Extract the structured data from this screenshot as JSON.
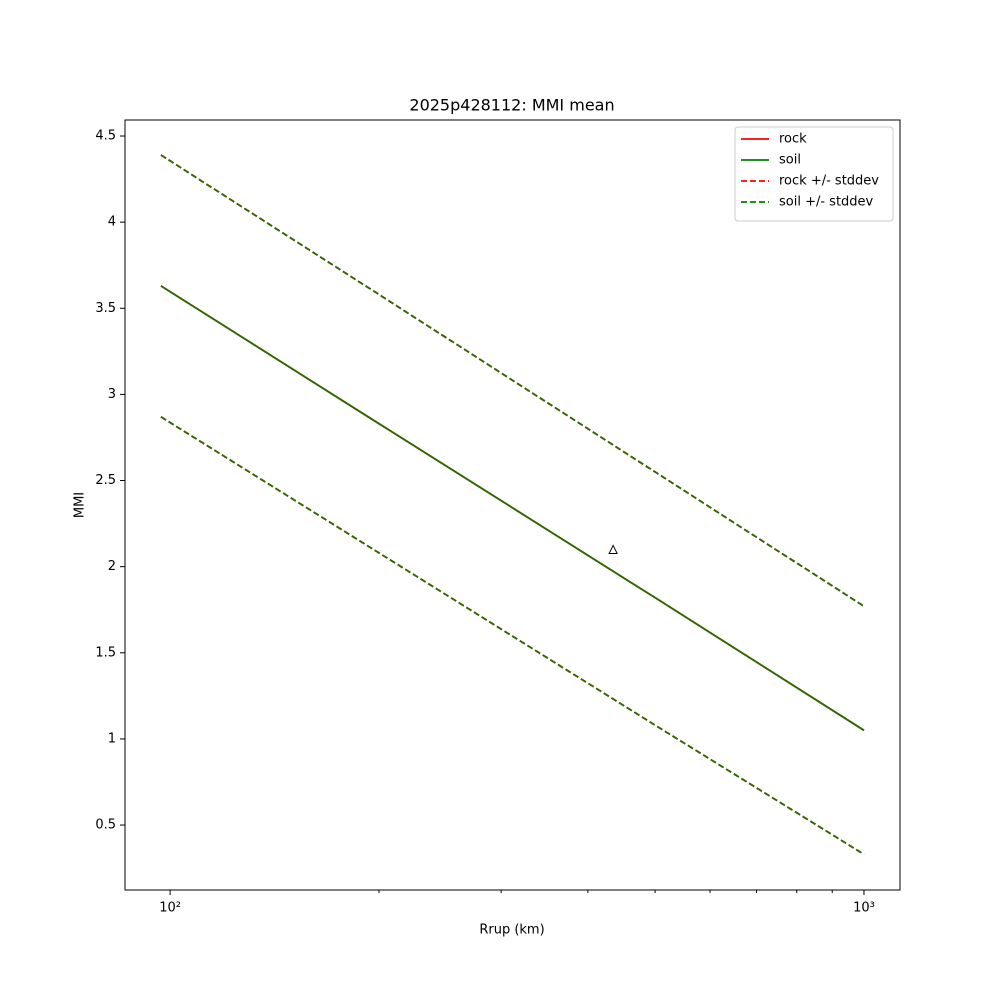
{
  "chart_data": {
    "type": "line",
    "title": "2025p428112: MMI mean",
    "xlabel": "Rrup (km)",
    "ylabel": "MMI",
    "xscale": "log",
    "xlim": [
      86.1,
      1127
    ],
    "ylim": [
      0.123,
      4.593
    ],
    "xticks": [
      {
        "value": 100,
        "label": "10²"
      },
      {
        "value": 1000,
        "label": "10³"
      }
    ],
    "xminorticks": [
      200,
      300,
      400,
      500,
      600,
      700,
      800,
      900
    ],
    "yticks": [
      0.5,
      1.0,
      1.5,
      2.0,
      2.5,
      3.0,
      3.5,
      4.0,
      4.5
    ],
    "legend": "upper right",
    "x": [
      97,
      200,
      500,
      1000
    ],
    "series": [
      {
        "name": "rock",
        "color": "#ff0000",
        "style": "solid",
        "values": [
          3.63,
          2.83,
          1.82,
          1.05
        ]
      },
      {
        "name": "soil",
        "color": "#008000",
        "style": "solid",
        "values": [
          3.63,
          2.83,
          1.82,
          1.05
        ]
      },
      {
        "name": "rock +/- stddev",
        "color": "#ff0000",
        "style": "dashed",
        "upper": [
          4.39,
          3.58,
          2.55,
          1.77
        ],
        "lower": [
          2.87,
          2.08,
          1.08,
          0.33
        ]
      },
      {
        "name": "soil +/- stddev",
        "color": "#008000",
        "style": "dashed",
        "upper": [
          4.39,
          3.58,
          2.55,
          1.77
        ],
        "lower": [
          2.87,
          2.08,
          1.08,
          0.33
        ]
      }
    ],
    "observations": {
      "x": [
        435
      ],
      "values": [
        2.1
      ],
      "marker": "triangle"
    }
  }
}
